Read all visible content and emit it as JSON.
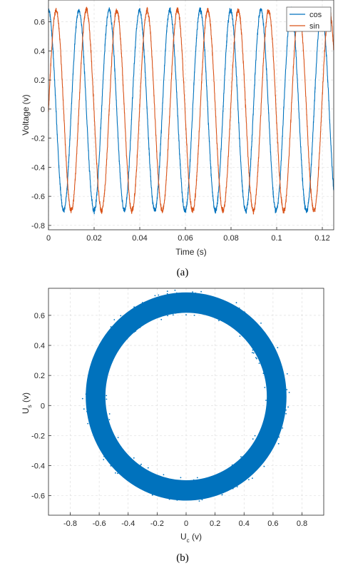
{
  "chart_data": [
    {
      "type": "line",
      "title": "",
      "xlabel": "Time (s)",
      "ylabel": "Voltage (v)",
      "xlim": [
        0,
        0.125
      ],
      "ylim": [
        -0.83,
        0.75
      ],
      "xticks": [
        0,
        0.02,
        0.04,
        0.06,
        0.08,
        0.1,
        0.12
      ],
      "xtick_labels": [
        "0",
        "0.02",
        "0.04",
        "0.06",
        "0.08",
        "0.1",
        "0.12"
      ],
      "yticks": [
        -0.8,
        -0.6,
        -0.4,
        -0.2,
        0,
        0.2,
        0.4,
        0.6
      ],
      "ytick_labels": [
        "-0.8",
        "-0.6",
        "-0.4",
        "-0.2",
        "0",
        "0.2",
        "0.4",
        "0.6"
      ],
      "grid": true,
      "legend": "top-right",
      "caption": "(a)",
      "series": [
        {
          "name": "cos",
          "color": "#0072BD",
          "amplitude": 0.69,
          "offset": -0.01,
          "period": 0.0133,
          "phase": 0.0
        },
        {
          "name": "sin",
          "color": "#D95319",
          "amplitude": 0.69,
          "offset": -0.01,
          "period": 0.0133,
          "phase": -1.5708
        }
      ]
    },
    {
      "type": "scatter",
      "title": "",
      "xlabel": "U",
      "xlabel_sub": "c",
      "xlabel_unit": " (v)",
      "ylabel": "U",
      "ylabel_sub": "s",
      "ylabel_unit": " (v)",
      "xlim": [
        -0.95,
        0.95
      ],
      "ylim": [
        -0.73,
        0.78
      ],
      "xticks": [
        -0.8,
        -0.6,
        -0.4,
        -0.2,
        0,
        0.2,
        0.4,
        0.6,
        0.8
      ],
      "xtick_labels": [
        "-0.8",
        "-0.6",
        "-0.4",
        "-0.2",
        "0",
        "0.2",
        "0.4",
        "0.6",
        "0.8"
      ],
      "yticks": [
        -0.6,
        -0.4,
        -0.2,
        0,
        0.2,
        0.4,
        0.6
      ],
      "ytick_labels": [
        "-0.6",
        "-0.4",
        "-0.2",
        "0",
        "0.2",
        "0.4",
        "0.6"
      ],
      "grid": true,
      "caption": "(b)",
      "series": [
        {
          "name": "",
          "color": "#0072BD",
          "center": [
            0,
            0.06
          ],
          "outer_radius": 0.69,
          "inner_radius": 0.56
        }
      ]
    }
  ]
}
